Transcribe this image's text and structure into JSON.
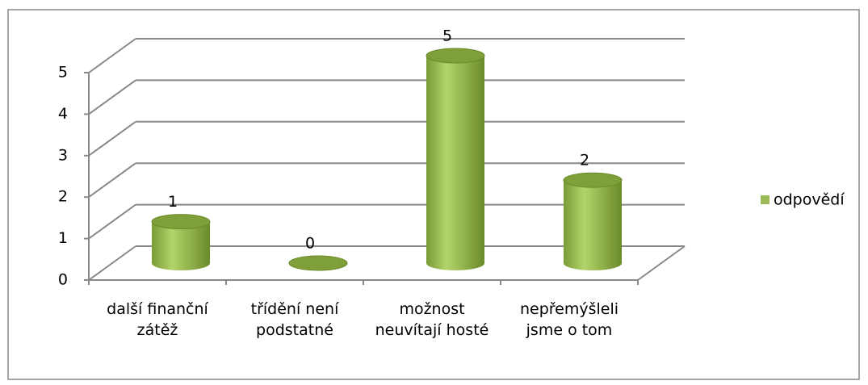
{
  "chart_data": {
    "type": "bar3d",
    "categories": [
      "další finanční zátěž",
      "třídění není podstatné",
      "možnost neuvítají hosté",
      "nepřemýšleli jsme o tom"
    ],
    "series": [
      {
        "name": "odpovědí",
        "color": "#9bbb59",
        "values": [
          1,
          0,
          5,
          2
        ]
      }
    ],
    "ylim": [
      0,
      5
    ],
    "yticks": [
      0,
      1,
      2,
      3,
      4,
      5
    ],
    "grid": true,
    "legend": "right"
  }
}
